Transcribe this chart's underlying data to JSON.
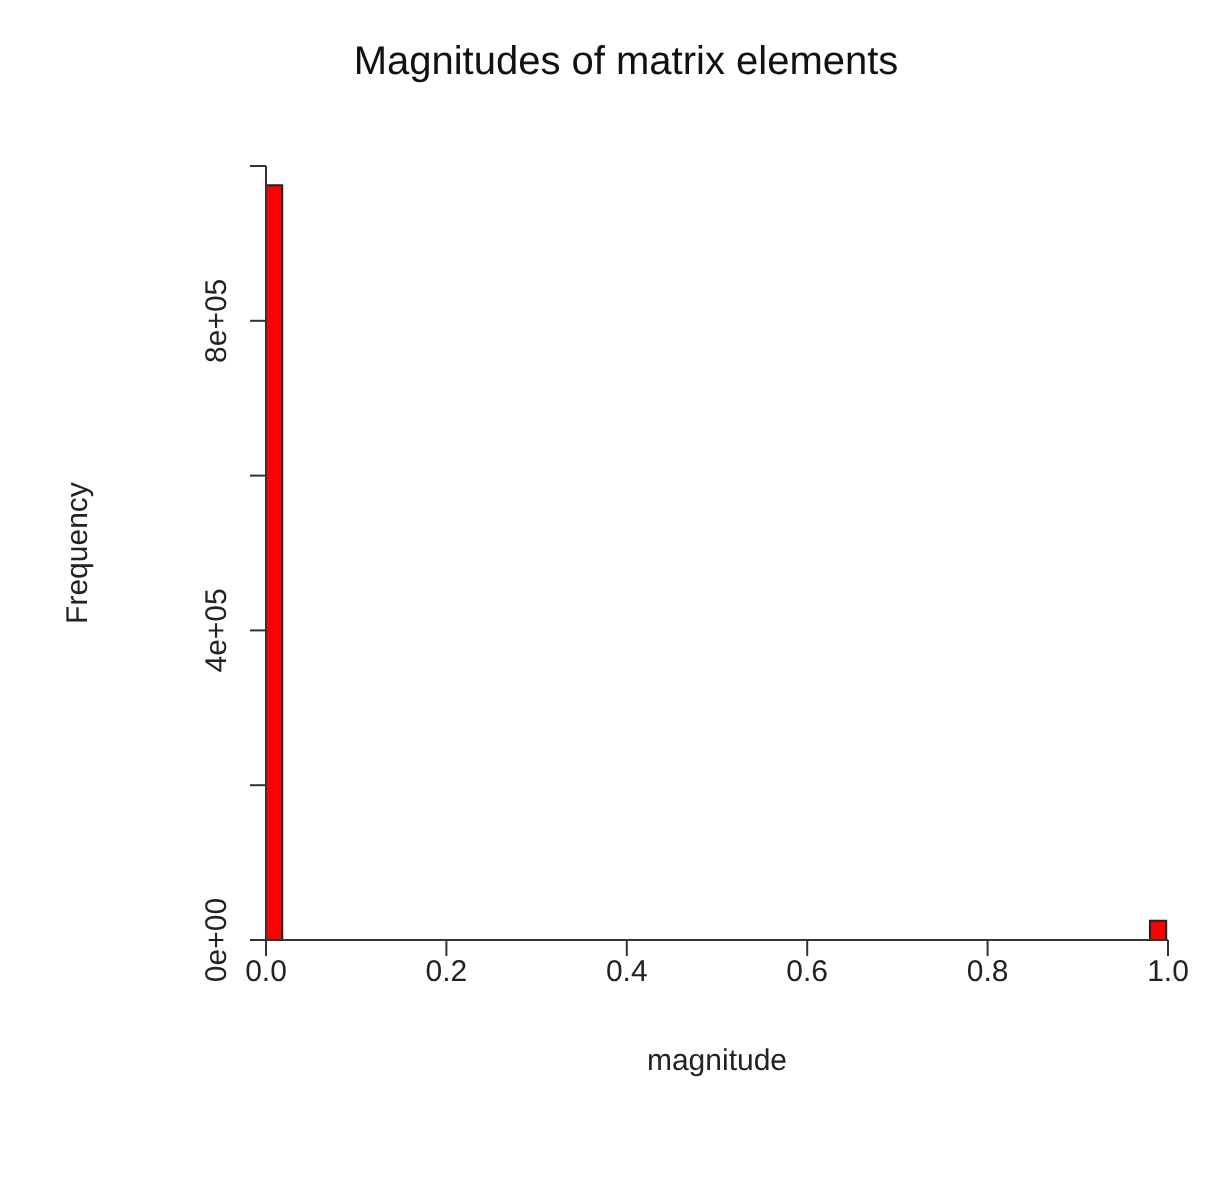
{
  "chart_data": {
    "type": "histogram",
    "title": "Magnitudes of matrix elements",
    "xlabel": "magnitude",
    "ylabel": "Frequency",
    "bins": [
      0,
      0.02,
      0.04,
      0.06,
      0.08,
      0.1,
      0.12,
      0.14,
      0.16,
      0.18,
      0.2,
      0.22,
      0.24,
      0.26,
      0.28,
      0.3,
      0.32,
      0.34,
      0.36,
      0.38,
      0.4,
      0.42,
      0.44,
      0.46,
      0.48,
      0.5,
      0.52,
      0.54,
      0.56,
      0.58,
      0.6,
      0.62,
      0.64,
      0.66,
      0.68,
      0.7,
      0.72,
      0.74,
      0.76,
      0.78,
      0.8,
      0.82,
      0.84,
      0.86,
      0.88,
      0.9,
      0.92,
      0.94,
      0.96,
      0.98,
      1
    ],
    "values": [
      975000,
      0,
      0,
      0,
      0,
      0,
      0,
      0,
      0,
      0,
      0,
      0,
      0,
      0,
      0,
      0,
      0,
      0,
      0,
      0,
      0,
      0,
      0,
      0,
      0,
      0,
      0,
      0,
      0,
      0,
      0,
      0,
      0,
      0,
      0,
      0,
      0,
      0,
      0,
      0,
      0,
      0,
      0,
      0,
      0,
      0,
      0,
      0,
      0,
      25000
    ],
    "color": "#ff0000",
    "xlim": [
      0,
      1
    ],
    "xticks": [
      {
        "value": 0,
        "label": "0.0"
      },
      {
        "value": 0.2,
        "label": "0.2"
      },
      {
        "value": 0.4,
        "label": "0.4"
      },
      {
        "value": 0.6,
        "label": "0.6"
      },
      {
        "value": 0.8,
        "label": "0.8"
      },
      {
        "value": 1,
        "label": "1.0"
      }
    ],
    "ylim": [
      0,
      1000000
    ],
    "yticks": [
      {
        "value": 0,
        "label": "0e+00"
      },
      {
        "value": 200000,
        "label": null
      },
      {
        "value": 400000,
        "label": "4e+05"
      },
      {
        "value": 600000,
        "label": null
      },
      {
        "value": 800000,
        "label": "8e+05"
      },
      {
        "value": 1000000,
        "label": null
      }
    ],
    "grid": false,
    "legend": false
  }
}
